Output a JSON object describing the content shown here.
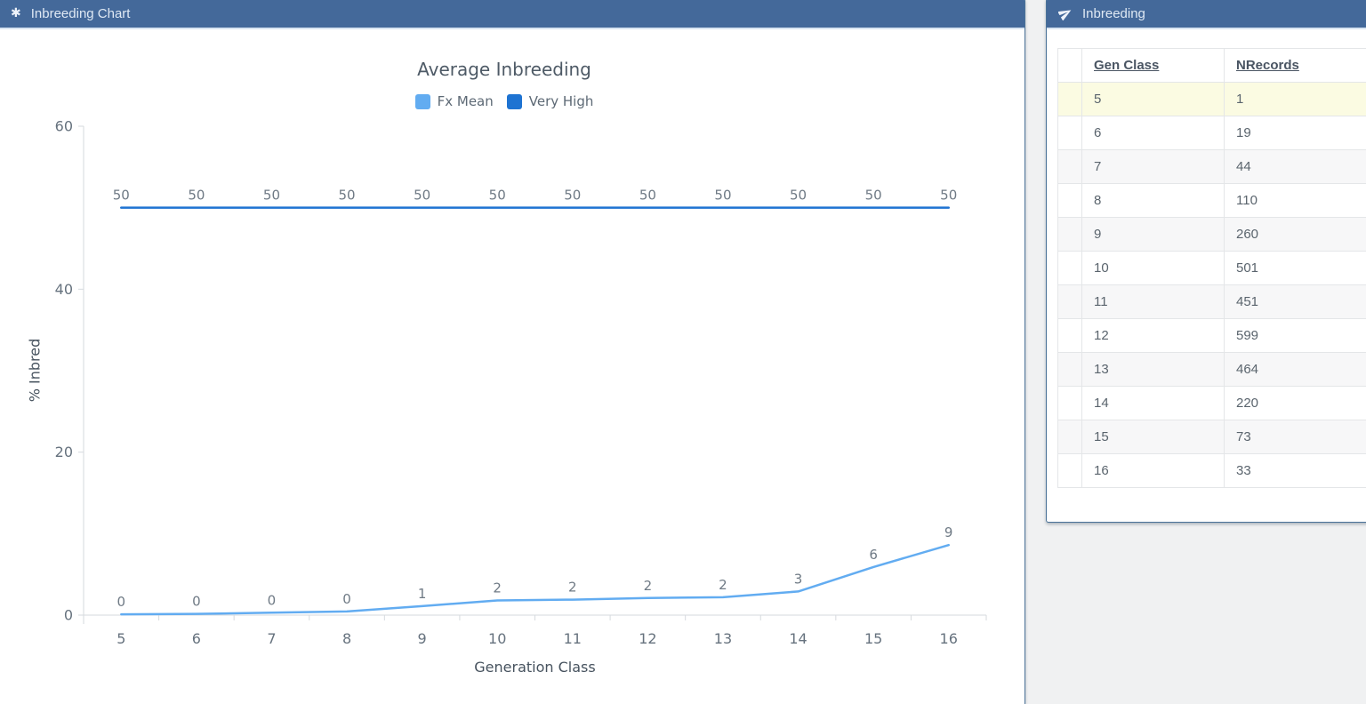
{
  "colors": {
    "page_background": "#f0f1f2",
    "panel_header_background": "#44699a",
    "panel_border": "#4a7298",
    "selected_row_background": "#fbfbe2",
    "stripe_row_background": "#f7f7f8",
    "axis_line": "#d6dade",
    "fx_mean_line": "#62acf1",
    "very_high_line": "#1e73d2"
  },
  "left_panel": {
    "header": {
      "icon": {
        "name": "asterisk-icon",
        "glyph": "✱"
      },
      "title": "Inbreeding Chart"
    }
  },
  "right_panel": {
    "header": {
      "icon": {
        "name": "paper-plane-icon"
      },
      "title": "Inbreeding"
    },
    "table": {
      "columns": [
        "Gen Class",
        "NRecords"
      ],
      "rows": [
        [
          5,
          1
        ],
        [
          6,
          19
        ],
        [
          7,
          44
        ],
        [
          8,
          110
        ],
        [
          9,
          260
        ],
        [
          10,
          501
        ],
        [
          11,
          451
        ],
        [
          12,
          599
        ],
        [
          13,
          464
        ],
        [
          14,
          220
        ],
        [
          15,
          73
        ],
        [
          16,
          33
        ]
      ],
      "selected_gen_class": 5
    }
  },
  "chart_data": {
    "type": "line",
    "title": "Average Inbreeding",
    "xlabel": "Generation Class",
    "ylabel": "% Inbred",
    "categories": [
      5,
      6,
      7,
      8,
      9,
      10,
      11,
      12,
      13,
      14,
      15,
      16
    ],
    "ylim": [
      0,
      60
    ],
    "yticks": [
      0,
      20,
      40,
      60
    ],
    "grid": false,
    "legend_position": "top",
    "series": [
      {
        "name": "Fx Mean",
        "color": "#62acf1",
        "values": [
          0,
          0,
          0,
          0,
          1,
          2,
          2,
          2,
          2,
          3,
          6,
          9
        ],
        "values_est": [
          0.1,
          0.15,
          0.3,
          0.45,
          1.1,
          1.8,
          1.9,
          2.1,
          2.2,
          2.9,
          5.9,
          8.6
        ]
      },
      {
        "name": "Very High",
        "color": "#1e73d2",
        "values": [
          50,
          50,
          50,
          50,
          50,
          50,
          50,
          50,
          50,
          50,
          50,
          50
        ]
      }
    ]
  }
}
